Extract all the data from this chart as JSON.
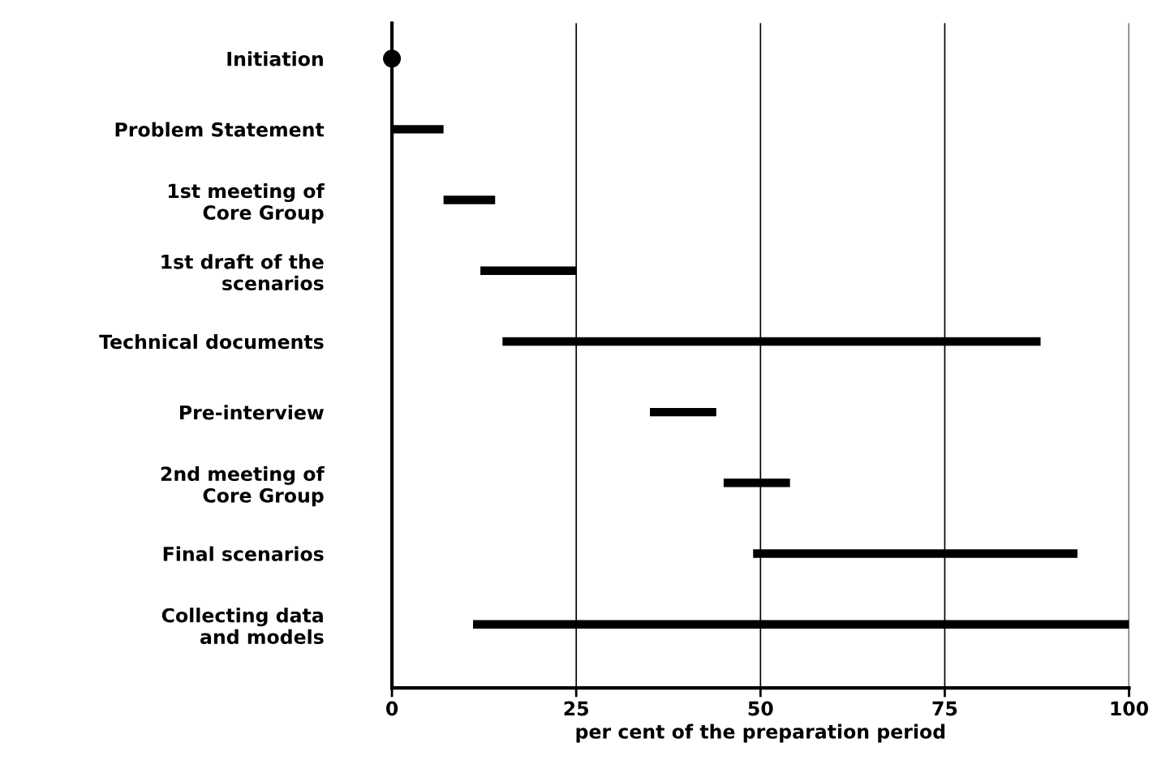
{
  "chart_data": {
    "type": "bar",
    "orientation": "horizontal",
    "xlabel": "per cent of the preparation period",
    "categories": [
      "Initiation",
      "Problem Statement",
      "1st meeting of\nCore Group",
      "1st draft of the\nscenarios",
      "Technical documents",
      "Pre-interview",
      "2nd meeting of\nCore Group",
      "Final scenarios",
      "Collecting data\nand models"
    ],
    "series": [
      {
        "type": "bar",
        "color": "#000000",
        "base": [
          null,
          0,
          7,
          12,
          15,
          35,
          45,
          49,
          11
        ],
        "values": [
          null,
          7,
          7,
          13,
          73,
          9,
          9,
          44,
          89
        ]
      },
      {
        "type": "scatter",
        "color": "#000000",
        "marker": "circle",
        "values": [
          0,
          null,
          null,
          null,
          null,
          null,
          null,
          null,
          null
        ]
      }
    ],
    "xlim": [
      0,
      100
    ],
    "xticks": [
      0,
      25,
      50,
      75,
      100
    ],
    "grid": "x"
  }
}
